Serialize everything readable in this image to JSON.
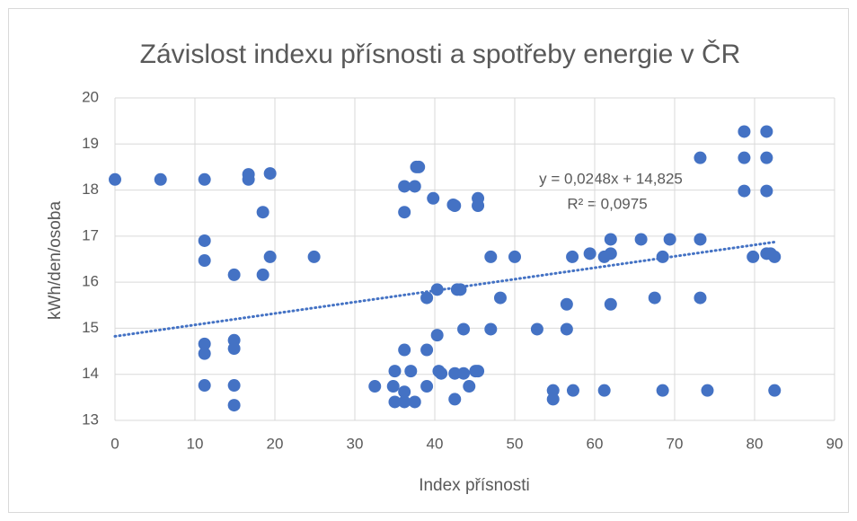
{
  "chart_data": {
    "type": "scatter",
    "title": "Závislost indexu přísnosti a spotřeby energie v ČR",
    "x_label": "Index přísnosti",
    "y_label": "kWh/den/osoba",
    "color": "#4472c4",
    "grid": true,
    "xlim": [
      0,
      90
    ],
    "xticks": [
      0,
      10,
      20,
      30,
      40,
      50,
      60,
      70,
      80,
      90
    ],
    "ylim": [
      13,
      20
    ],
    "yticks": [
      13,
      14,
      15,
      16,
      17,
      18,
      19,
      20
    ],
    "x": [
      0,
      5.7,
      11.2,
      11.2,
      11.2,
      11.2,
      11.2,
      11.2,
      14.9,
      14.9,
      14.9,
      14.9,
      14.9,
      16.7,
      16.7,
      19.4,
      18.5,
      18.5,
      19.4,
      24.9,
      32.5,
      34.8,
      35,
      35,
      36.2,
      36.2,
      36.2,
      36.2,
      36.2,
      37,
      37.5,
      37.5,
      37.7,
      38,
      39,
      39,
      39,
      39.8,
      40.3,
      40.3,
      40.5,
      40.8,
      42.3,
      42.5,
      42.5,
      42.5,
      42.8,
      43.2,
      43.6,
      43.6,
      44.3,
      45.1,
      45.4,
      45.4,
      45.4,
      47,
      47,
      48.2,
      50,
      52.8,
      54.8,
      54.8,
      56.5,
      56.5,
      57.2,
      57.3,
      59.4,
      61.2,
      61.2,
      62,
      62,
      62,
      65.8,
      67.5,
      68.5,
      68.5,
      69.4,
      73.2,
      73.2,
      73.2,
      74.1,
      78.7,
      78.7,
      78.7,
      79.8,
      81.5,
      81.5,
      81.5,
      81.5,
      82,
      82.5,
      82.5
    ],
    "values": [
      18.23,
      18.23,
      18.23,
      16.9,
      16.47,
      14.66,
      14.45,
      13.76,
      16.16,
      14.74,
      14.56,
      13.76,
      13.33,
      18.34,
      18.23,
      18.36,
      17.52,
      16.16,
      16.55,
      16.55,
      13.74,
      13.74,
      14.07,
      13.4,
      14.53,
      13.62,
      13.4,
      18.08,
      17.52,
      14.07,
      13.4,
      18.08,
      18.5,
      18.5,
      15.66,
      14.53,
      13.74,
      17.82,
      15.84,
      14.85,
      14.07,
      14.02,
      17.68,
      17.66,
      14.02,
      13.46,
      15.84,
      15.84,
      14.98,
      14.02,
      13.74,
      14.07,
      14.07,
      17.82,
      17.66,
      16.55,
      14.98,
      15.66,
      16.55,
      14.98,
      13.65,
      13.46,
      15.52,
      14.98,
      16.55,
      13.65,
      16.62,
      16.55,
      13.65,
      16.62,
      16.93,
      15.52,
      16.93,
      15.66,
      16.55,
      13.65,
      16.93,
      18.7,
      16.93,
      15.66,
      13.65,
      19.27,
      18.7,
      17.98,
      16.55,
      19.27,
      18.7,
      17.98,
      16.62,
      16.62,
      16.55,
      13.65
    ],
    "trendline": {
      "slope": 0.0248,
      "intercept": 14.825,
      "x": [
        0,
        82.5
      ],
      "label": "y = 0,0248x + 14,825",
      "r2_label": "R² = 0,0975"
    }
  }
}
